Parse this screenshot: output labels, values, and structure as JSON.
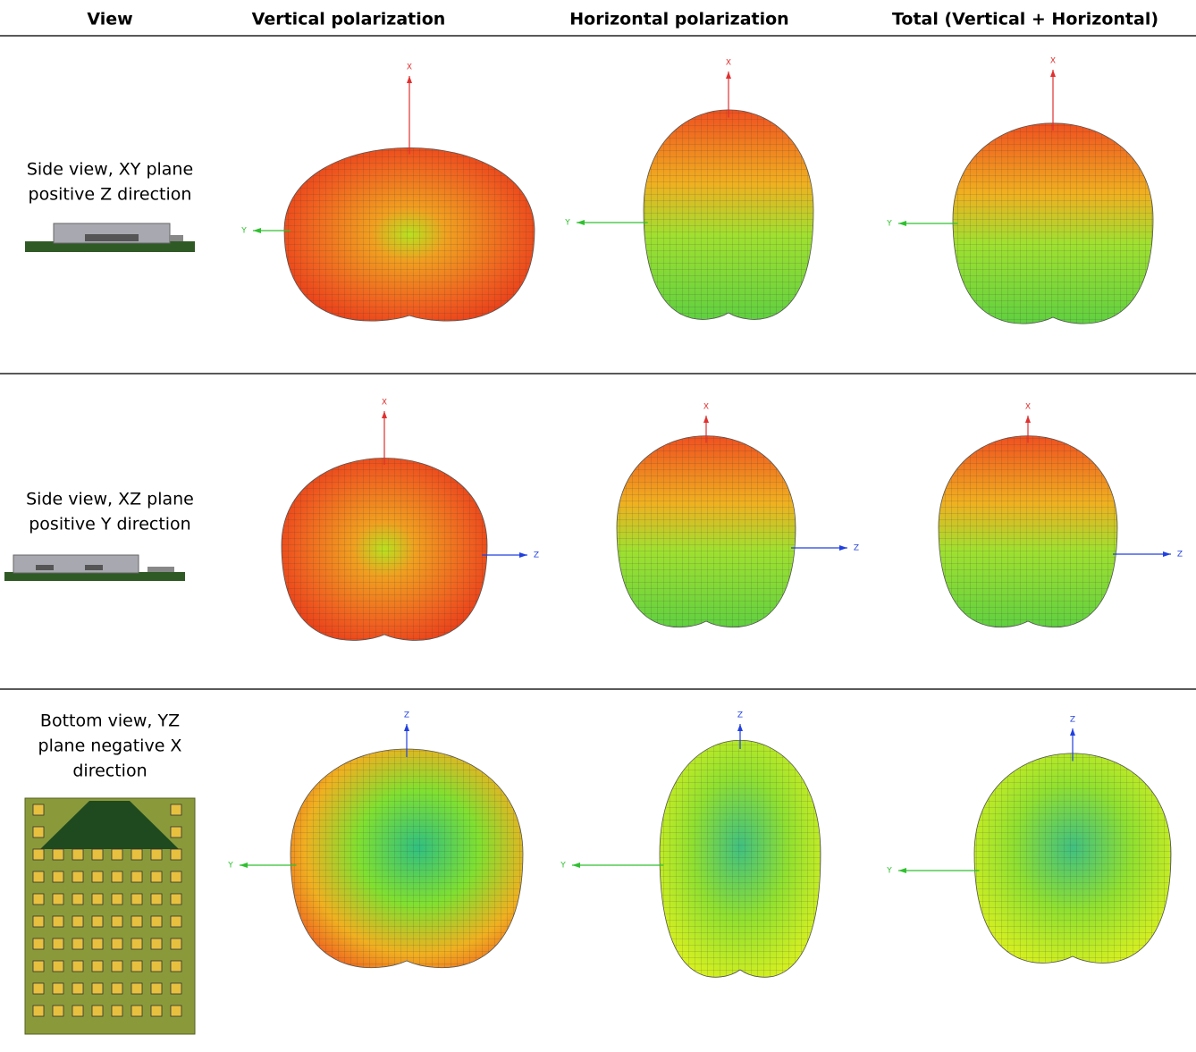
{
  "header": [
    "View",
    "Vertical polarization",
    "Horizontal polarization",
    "Total (Vertical + Horizontal)"
  ],
  "rows": [
    {
      "label": [
        "Side view, XY plane",
        "positive Z direction"
      ],
      "plots": [
        {
          "up": {
            "label": "X",
            "color": "#e03030"
          },
          "side": {
            "label": "Y",
            "color": "#30c030"
          }
        },
        {
          "up": {
            "label": "X",
            "color": "#e03030"
          },
          "side": {
            "label": "Y",
            "color": "#30c030"
          }
        },
        {
          "up": {
            "label": "X",
            "color": "#e03030"
          },
          "side": {
            "label": "Y",
            "color": "#30c030"
          }
        }
      ]
    },
    {
      "label": [
        "Side view, XZ plane",
        "positive Y direction"
      ],
      "plots": [
        {
          "up": {
            "label": "X",
            "color": "#e03030"
          },
          "side": {
            "label": "Z",
            "color": "#2040e0"
          }
        },
        {
          "up": {
            "label": "X",
            "color": "#e03030"
          },
          "side": {
            "label": "Z",
            "color": "#2040e0"
          }
        },
        {
          "up": {
            "label": "X",
            "color": "#e03030"
          },
          "side": {
            "label": "Z",
            "color": "#2040e0"
          }
        }
      ]
    },
    {
      "label": [
        "Bottom view, YZ",
        "plane negative X",
        "direction"
      ],
      "plots": [
        {
          "up": {
            "label": "Z",
            "color": "#2040e0"
          },
          "side": {
            "label": "Y",
            "color": "#30c030"
          }
        },
        {
          "up": {
            "label": "Z",
            "color": "#2040e0"
          },
          "side": {
            "label": "Y",
            "color": "#30c030"
          }
        },
        {
          "up": {
            "label": "Z",
            "color": "#2040e0"
          },
          "side": {
            "label": "Y",
            "color": "#30c030"
          }
        }
      ]
    }
  ]
}
